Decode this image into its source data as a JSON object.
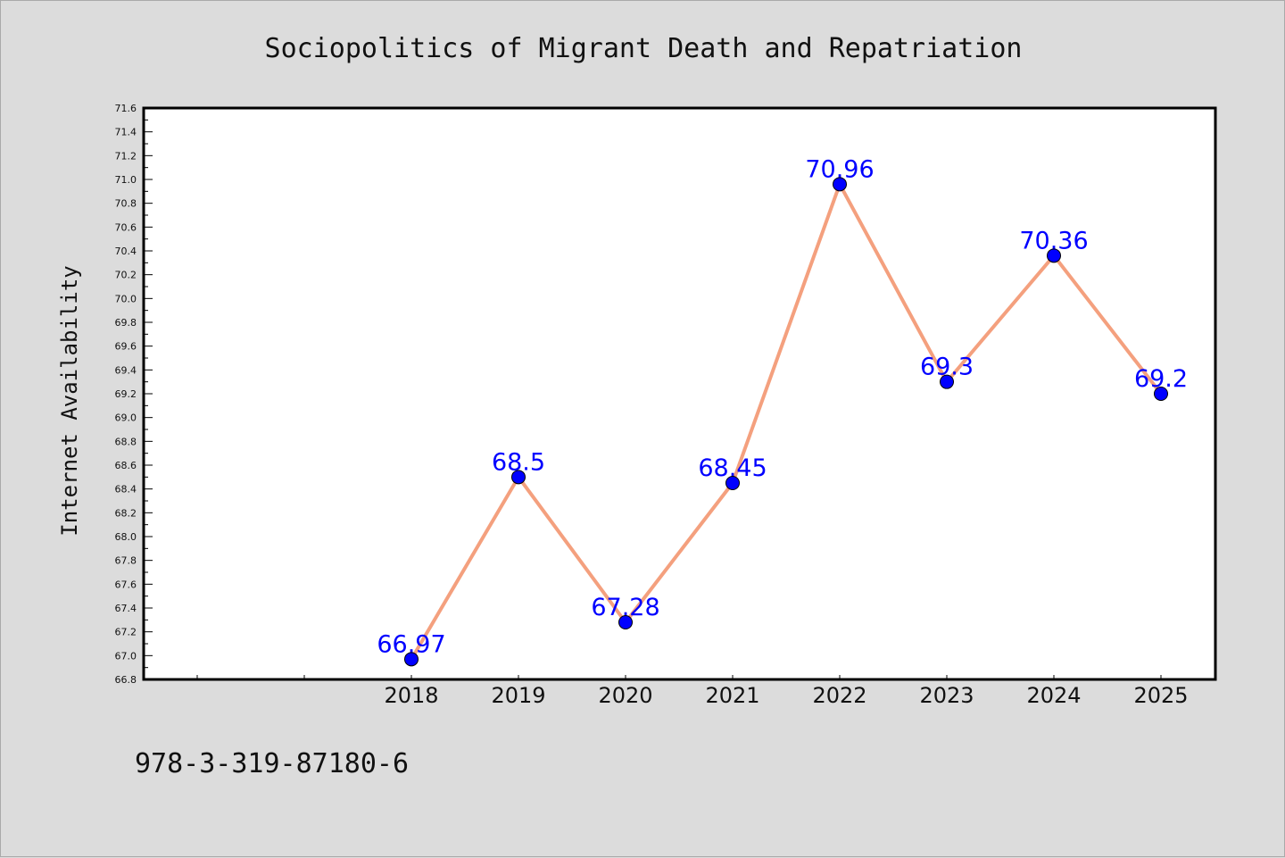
{
  "chart_data": {
    "type": "line",
    "title": "Sociopolitics of Migrant Death and Repatriation",
    "xlabel": "",
    "ylabel": "Internet Availability",
    "categories": [
      "",
      "",
      "2018",
      "2019",
      "2020",
      "2021",
      "2022",
      "2023",
      "2024",
      "2025"
    ],
    "series": [
      {
        "values": [
          null,
          null,
          66.97,
          68.5,
          67.28,
          68.45,
          70.96,
          69.3,
          70.36,
          69.2
        ]
      }
    ],
    "data_labels": [
      "",
      "",
      "66.97",
      "68.5",
      "67.28",
      "68.45",
      "70.96",
      "69.3",
      "70.36",
      "69.2"
    ],
    "ylim": [
      66.8,
      71.6
    ],
    "y_major_step": 0.2,
    "y_tick_labels": [
      "66.8",
      "67.0",
      "67.2",
      "67.4",
      "67.6",
      "67.8",
      "68.0",
      "68.2",
      "68.4",
      "68.6",
      "68.8",
      "69.0",
      "69.2",
      "69.4",
      "69.6",
      "69.8",
      "70.0",
      "70.2",
      "70.4",
      "70.6",
      "70.8",
      "71.0",
      "71.2",
      "71.4",
      "71.6"
    ],
    "grid": false,
    "line_color": "#f4a07e",
    "marker_color": "#0000ff",
    "label_color": "#0000ff",
    "plot_background": "#ffffff",
    "page_background": "#dcdcdc"
  },
  "footer": {
    "isbn": "978-3-319-87180-6"
  }
}
